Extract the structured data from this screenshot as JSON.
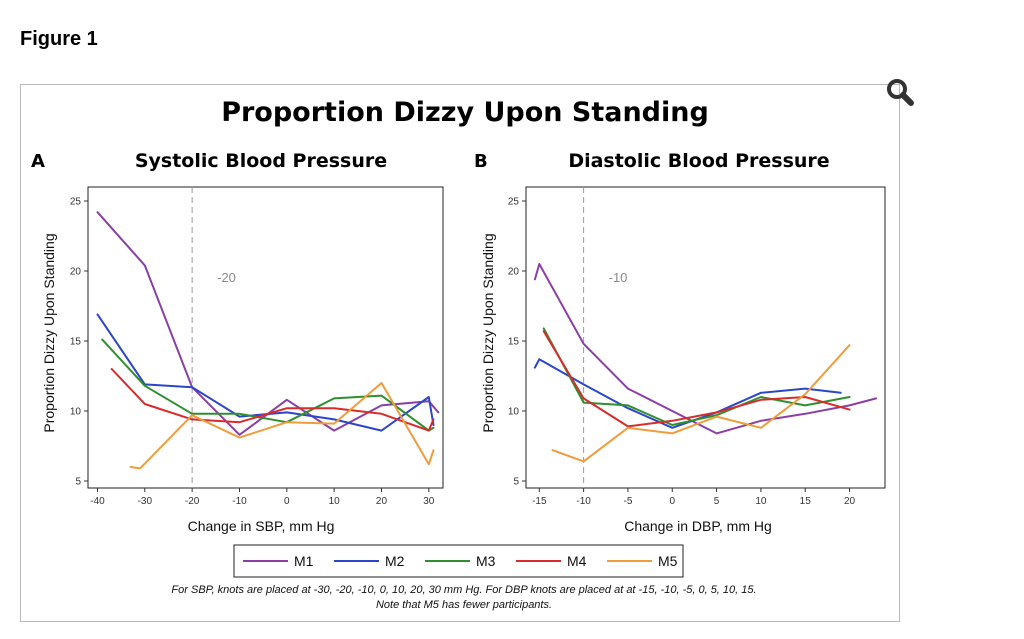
{
  "page": {
    "figure_label": "Figure 1"
  },
  "colors": {
    "M1": "#8b3fa6",
    "M2": "#2b46c8",
    "M3": "#2f8f2f",
    "M4": "#d92b2b",
    "M5": "#ef9c3a"
  },
  "chart_data": [
    {
      "type": "line",
      "panel_letter": "A",
      "suptitle": "Proportion Dizzy Upon Standing",
      "title": "Systolic Blood Pressure",
      "xlabel": "Change in SBP, mm Hg",
      "ylabel": "Proportion Dizzy Upon Standing",
      "xlim": [
        -42,
        33
      ],
      "ylim": [
        4.5,
        26
      ],
      "xticks": [
        -40,
        -30,
        -20,
        -10,
        0,
        10,
        20,
        30
      ],
      "yticks": [
        5,
        10,
        15,
        20,
        25
      ],
      "reference_line": {
        "x": -20,
        "label": "-20"
      },
      "series": [
        {
          "name": "M1",
          "x": [
            -40,
            -30,
            -20,
            -10,
            0,
            10,
            20,
            30,
            32
          ],
          "y": [
            24.2,
            20.4,
            11.7,
            8.3,
            10.8,
            8.6,
            10.4,
            10.7,
            9.9
          ]
        },
        {
          "name": "M2",
          "x": [
            -40,
            -30,
            -20,
            -10,
            0,
            10,
            20,
            30,
            31
          ],
          "y": [
            16.9,
            11.9,
            11.7,
            9.6,
            9.9,
            9.4,
            8.6,
            11.0,
            9.0
          ]
        },
        {
          "name": "M3",
          "x": [
            -39,
            -30,
            -20,
            -10,
            0,
            10,
            20,
            30,
            31
          ],
          "y": [
            15.1,
            11.8,
            9.8,
            9.8,
            9.2,
            10.9,
            11.1,
            8.6,
            8.8
          ]
        },
        {
          "name": "M4",
          "x": [
            -37,
            -30,
            -20,
            -10,
            0,
            10,
            20,
            30,
            31
          ],
          "y": [
            13.0,
            10.5,
            9.4,
            9.2,
            10.2,
            10.2,
            9.8,
            8.6,
            9.4
          ]
        },
        {
          "name": "M5",
          "x": [
            -33,
            -31,
            -20,
            -10,
            0,
            10,
            20,
            30,
            31
          ],
          "y": [
            6.0,
            5.9,
            9.7,
            8.1,
            9.2,
            9.1,
            12.0,
            6.2,
            7.2
          ]
        }
      ],
      "legend": [
        "M1",
        "M2",
        "M3",
        "M4",
        "M5"
      ]
    },
    {
      "type": "line",
      "panel_letter": "B",
      "title": "Diastolic Blood Pressure",
      "xlabel": "Change in DBP, mm Hg",
      "ylabel": "Proportion Dizzy Upon Standing",
      "xlim": [
        -16.5,
        24
      ],
      "ylim": [
        4.5,
        26
      ],
      "xticks": [
        -15,
        -10,
        -5,
        0,
        5,
        10,
        15,
        20
      ],
      "yticks": [
        5,
        10,
        15,
        20,
        25
      ],
      "reference_line": {
        "x": -10,
        "label": "-10"
      },
      "series": [
        {
          "name": "M1",
          "x": [
            -15.5,
            -15,
            -10,
            -5,
            0,
            5,
            10,
            15,
            20,
            23
          ],
          "y": [
            19.4,
            20.5,
            14.8,
            11.6,
            10.0,
            8.4,
            9.3,
            9.8,
            10.4,
            10.9
          ]
        },
        {
          "name": "M2",
          "x": [
            -15.5,
            -15,
            -10,
            -5,
            0,
            5,
            10,
            15,
            19
          ],
          "y": [
            13.1,
            13.7,
            11.9,
            10.2,
            8.8,
            9.9,
            11.3,
            11.6,
            11.3
          ]
        },
        {
          "name": "M3",
          "x": [
            -14.5,
            -10,
            -5,
            0,
            5,
            10,
            15,
            20
          ],
          "y": [
            15.9,
            10.6,
            10.4,
            9.0,
            9.7,
            11.0,
            10.4,
            11.0
          ]
        },
        {
          "name": "M4",
          "x": [
            -14.5,
            -10,
            -5,
            0,
            5,
            10,
            15,
            20
          ],
          "y": [
            15.7,
            10.9,
            8.9,
            9.3,
            9.9,
            10.8,
            11.0,
            10.1
          ]
        },
        {
          "name": "M5",
          "x": [
            -13.5,
            -10,
            -5,
            0,
            5,
            10,
            15,
            20
          ],
          "y": [
            7.2,
            6.4,
            8.8,
            8.4,
            9.6,
            8.8,
            11.2,
            14.7
          ]
        }
      ]
    }
  ],
  "footnote_lines": [
    "For SBP, knots are placed at -30, -20, -10, 0, 10, 20, 30 mm Hg. For DBP knots are placed at at -15, -10, -5, 0, 5, 10, 15.",
    "Note that M5 has fewer participants."
  ]
}
